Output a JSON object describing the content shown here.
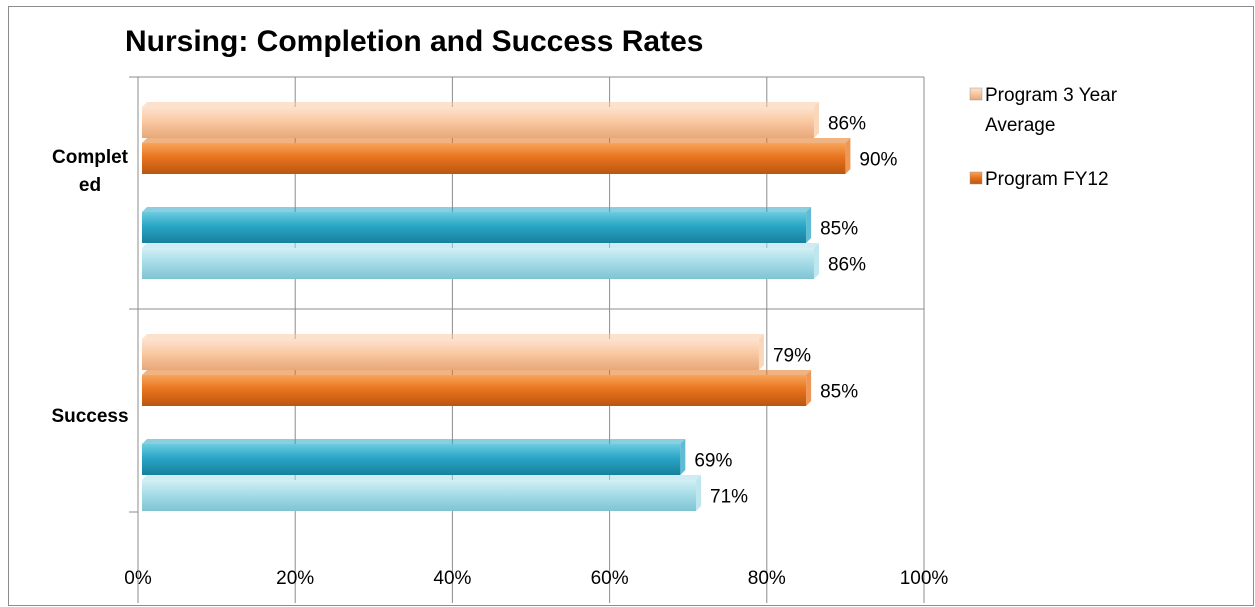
{
  "chart_data": {
    "type": "bar",
    "orientation": "horizontal",
    "title": "Nursing: Completion and Success Rates",
    "xlabel": "",
    "ylabel": "",
    "xlim": [
      0,
      100
    ],
    "x_tick_labels": [
      "0%",
      "20%",
      "40%",
      "60%",
      "80%",
      "100%"
    ],
    "categories": [
      "Completed",
      "Success"
    ],
    "category_labels": [
      [
        "Complet",
        "ed"
      ],
      [
        "Success"
      ]
    ],
    "grid": true,
    "legend_position": "right",
    "series": [
      {
        "name": "Program 3 Year Average",
        "legend_lines": [
          "Program 3 Year",
          "Average"
        ],
        "color": "#f9c9a3",
        "values": [
          86,
          79
        ],
        "labels": [
          "86%",
          "79%"
        ]
      },
      {
        "name": "Program FY12",
        "legend_lines": [
          "Program FY12"
        ],
        "color": "#e8741e",
        "values": [
          90,
          85
        ],
        "labels": [
          "90%",
          "85%"
        ]
      },
      {
        "color": "#2aa6c6",
        "values": [
          85,
          69
        ],
        "labels": [
          "85%",
          "69%"
        ]
      },
      {
        "color": "#a7dde8",
        "values": [
          86,
          71
        ],
        "labels": [
          "86%",
          "71%"
        ]
      }
    ]
  }
}
